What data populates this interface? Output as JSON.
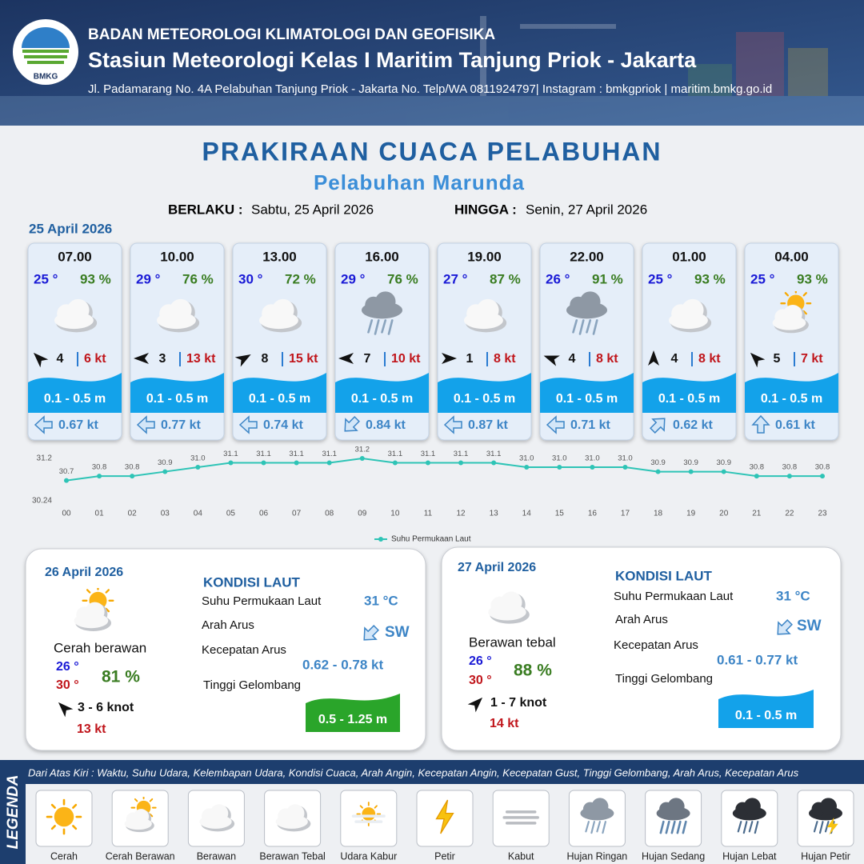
{
  "header": {
    "logo": "BMKG",
    "agency": "BADAN METEOROLOGI KLIMATOLOGI DAN GEOFISIKA",
    "station": "Stasiun Meteorologi Kelas I Maritim Tanjung Priok - Jakarta",
    "address": "Jl. Padamarang No. 4A Pelabuhan Tanjung Priok - Jakarta No. Telp/WA 0811924797| Instagram : bmkgpriok | maritim.bmkg.go.id"
  },
  "title": "PRAKIRAAN CUACA PELABUHAN",
  "subtitle": "Pelabuhan Marunda",
  "validity": {
    "from_label": "BERLAKU :",
    "from": "Sabtu, 25 April 2026",
    "to_label": "HINGGA :",
    "to": "Senin, 27 April 2026"
  },
  "today": {
    "date": "25 April 2026",
    "slots": [
      {
        "time": "07.00",
        "temperature": "25 °",
        "humidity": "93 %",
        "wind": 4,
        "gust": "6 kt",
        "wave": "0.1 - 0.5 m",
        "current": "0.67 kt"
      },
      {
        "time": "10.00",
        "temperature": "29 °",
        "humidity": "76 %",
        "wind": 3,
        "gust": "13 kt",
        "wave": "0.1 - 0.5 m",
        "current": "0.77 kt"
      },
      {
        "time": "13.00",
        "temperature": "30 °",
        "humidity": "72 %",
        "wind": 8,
        "gust": "15 kt",
        "wave": "0.1 - 0.5 m",
        "current": "0.74 kt"
      },
      {
        "time": "16.00",
        "temperature": "29 °",
        "humidity": "76 %",
        "wind": 7,
        "gust": "10 kt",
        "wave": "0.1 - 0.5 m",
        "current": "0.84 kt"
      },
      {
        "time": "19.00",
        "temperature": "27 °",
        "humidity": "87 %",
        "wind": 1,
        "gust": "8 kt",
        "wave": "0.1 - 0.5 m",
        "current": "0.87 kt"
      },
      {
        "time": "22.00",
        "temperature": "26 °",
        "humidity": "91 %",
        "wind": 4,
        "gust": "8 kt",
        "wave": "0.1 - 0.5 m",
        "current": "0.71 kt"
      },
      {
        "time": "01.00",
        "temperature": "25 °",
        "humidity": "93 %",
        "wind": 4,
        "gust": "8 kt",
        "wave": "0.1 - 0.5 m",
        "current": "0.62 kt"
      },
      {
        "time": "04.00",
        "temperature": "25 °",
        "humidity": "93 %",
        "wind": 5,
        "gust": "7 kt",
        "wave": "0.1 - 0.5 m",
        "current": "0.61 kt"
      }
    ]
  },
  "chart_data": {
    "type": "line",
    "categories": [
      "00",
      "01",
      "02",
      "03",
      "04",
      "05",
      "06",
      "07",
      "08",
      "09",
      "10",
      "11",
      "12",
      "13",
      "14",
      "15",
      "16",
      "17",
      "18",
      "19",
      "20",
      "21",
      "22",
      "23"
    ],
    "series": [
      {
        "name": "Suhu Permukaan Laut",
        "color": "#2ec4b6",
        "values": [
          30.7,
          30.8,
          30.8,
          30.9,
          31.0,
          31.1,
          31.1,
          31.1,
          31.1,
          31.2,
          31.1,
          31.1,
          31.1,
          31.1,
          31.0,
          31.0,
          31.0,
          31.0,
          30.9,
          30.9,
          30.9,
          30.8,
          30.8,
          30.8
        ],
        "value_labels": [
          "30.7",
          "30.8",
          "30.8",
          "30.9",
          "31.0",
          "31.1",
          "31.1",
          "31.1",
          "31.1",
          "31.2",
          "31.1",
          "31.1",
          "31.1",
          "31.1",
          "31.0",
          "31.0",
          "31.0",
          "31.0",
          "30.9",
          "30.9",
          "30.9",
          "30.8",
          "30.8",
          "30.8"
        ]
      }
    ],
    "ylim": [
      30.24,
      31.2
    ],
    "yticks": [
      30.24,
      31.2
    ]
  },
  "outlook": [
    {
      "date": "26 April 2026",
      "condition": "Cerah berawan",
      "temp_min": "26 °",
      "temp_max": "30 °",
      "humidity": "81 %",
      "wind": "3  - 6 knot",
      "gust": "13 kt",
      "sea": {
        "title": "KONDISI LAUT",
        "sst_label": "Suhu Permukaan Laut",
        "sst": "31 °C",
        "direction_label": "Arah Arus",
        "direction": "SW",
        "speed_label": "Kecepatan Arus",
        "speed": "0.62  - 0.78 kt",
        "wave_label": "Tinggi Gelombang",
        "wave": "0.5 - 1.25 m"
      }
    },
    {
      "date": "27 April 2026",
      "condition": "Berawan tebal",
      "temp_min": "26 °",
      "temp_max": "30 °",
      "humidity": "88 %",
      "wind": "1  - 7 knot",
      "gust": "14 kt",
      "sea": {
        "title": "KONDISI LAUT",
        "sst_label": "Suhu Permukaan Laut",
        "sst": "31 °C",
        "direction_label": "Arah Arus",
        "direction": "SW",
        "speed_label": "Kecepatan Arus",
        "speed": "0.61 - 0.77 kt",
        "wave_label": "Tinggi Gelombang",
        "wave": "0.1 - 0.5 m"
      }
    }
  ],
  "legend": {
    "title": "LEGENDA",
    "description": "Dari Atas Kiri : Waktu, Suhu Udara, Kelembapan Udara, Kondisi Cuaca, Arah Angin, Kecepatan Angin, Kecepatan Gust, Tinggi Gelombang, Arah Arus, Kecepatan Arus",
    "items": [
      "Cerah",
      "Cerah Berawan",
      "Berawan",
      "Berawan Tebal",
      "Udara Kabur",
      "Petir",
      "Kabut",
      "Hujan Ringan",
      "Hujan Sedang",
      "Hujan Lebat",
      "Hujan Petir"
    ]
  }
}
